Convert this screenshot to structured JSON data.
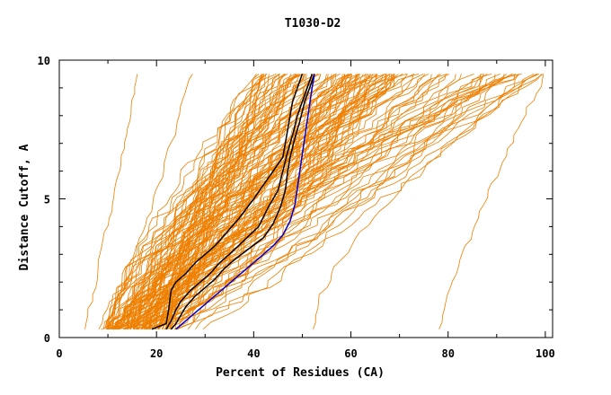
{
  "chart_data": {
    "type": "line",
    "title": "T1030-D2",
    "xlabel": "Percent of Residues (CA)",
    "ylabel": "Distance Cutoff, A",
    "xlim": [
      0,
      101.5
    ],
    "ylim": [
      0,
      10
    ],
    "x_ticks": [
      0,
      20,
      40,
      60,
      80,
      100
    ],
    "y_ticks": [
      0,
      5,
      10
    ],
    "grid": false,
    "colors": {
      "background_models": "#ee7f00",
      "highlight_black": "#000000",
      "highlight_blue": "#0000cc",
      "axis": "#000000"
    },
    "background_series_count": 140,
    "background_series_note": "",
    "series": [
      {
        "color": "#000000",
        "points": [
          [
            19,
            0.3
          ],
          [
            22,
            0.5
          ],
          [
            22.5,
            1
          ],
          [
            23,
            1.7
          ],
          [
            24,
            2
          ],
          [
            26,
            2.3
          ],
          [
            28,
            2.7
          ],
          [
            30,
            3
          ],
          [
            32,
            3.3
          ],
          [
            34,
            3.7
          ],
          [
            37,
            4.3
          ],
          [
            40,
            5
          ],
          [
            42,
            5.5
          ],
          [
            44,
            6
          ],
          [
            46,
            6.5
          ],
          [
            46.5,
            7
          ],
          [
            47,
            7.5
          ],
          [
            47.5,
            8
          ],
          [
            48,
            8.5
          ],
          [
            49,
            9
          ],
          [
            50,
            9.5
          ]
        ]
      },
      {
        "color": "#000000",
        "points": [
          [
            22,
            0.3
          ],
          [
            23,
            0.6
          ],
          [
            24,
            1
          ],
          [
            25,
            1.3
          ],
          [
            27,
            1.7
          ],
          [
            29,
            2
          ],
          [
            31,
            2.3
          ],
          [
            33,
            2.7
          ],
          [
            35,
            3
          ],
          [
            38,
            3.5
          ],
          [
            41,
            4
          ],
          [
            43,
            4.7
          ],
          [
            45,
            5.3
          ],
          [
            46,
            6
          ],
          [
            47,
            6.7
          ],
          [
            48,
            7.3
          ],
          [
            49,
            8
          ],
          [
            50,
            8.5
          ],
          [
            51,
            9
          ],
          [
            52,
            9.5
          ]
        ]
      },
      {
        "color": "#000000",
        "points": [
          [
            23,
            0.3
          ],
          [
            24,
            0.5
          ],
          [
            25,
            0.8
          ],
          [
            26,
            1.1
          ],
          [
            28,
            1.5
          ],
          [
            30,
            1.8
          ],
          [
            32,
            2.1
          ],
          [
            34,
            2.5
          ],
          [
            36,
            2.8
          ],
          [
            39,
            3.2
          ],
          [
            42,
            3.6
          ],
          [
            44,
            4.1
          ],
          [
            45.5,
            4.7
          ],
          [
            46.5,
            5.3
          ],
          [
            47,
            6
          ],
          [
            47.5,
            6.5
          ],
          [
            48.5,
            7.2
          ],
          [
            49.5,
            7.8
          ],
          [
            50.5,
            8.5
          ],
          [
            51.5,
            9
          ],
          [
            52.5,
            9.5
          ]
        ]
      },
      {
        "color": "#0000cc",
        "points": [
          [
            24,
            0.3
          ],
          [
            26,
            0.6
          ],
          [
            28,
            0.9
          ],
          [
            30,
            1.2
          ],
          [
            32,
            1.5
          ],
          [
            34,
            1.8
          ],
          [
            36,
            2.1
          ],
          [
            38,
            2.4
          ],
          [
            40,
            2.7
          ],
          [
            42,
            3
          ],
          [
            44,
            3.3
          ],
          [
            46,
            3.7
          ],
          [
            47.5,
            4.2
          ],
          [
            48.5,
            4.8
          ],
          [
            49,
            5.4
          ],
          [
            49.5,
            6
          ],
          [
            50,
            6.6
          ],
          [
            50.5,
            7.2
          ],
          [
            51,
            7.8
          ],
          [
            51.5,
            8.4
          ],
          [
            52,
            9
          ],
          [
            52.5,
            9.5
          ]
        ]
      }
    ]
  }
}
